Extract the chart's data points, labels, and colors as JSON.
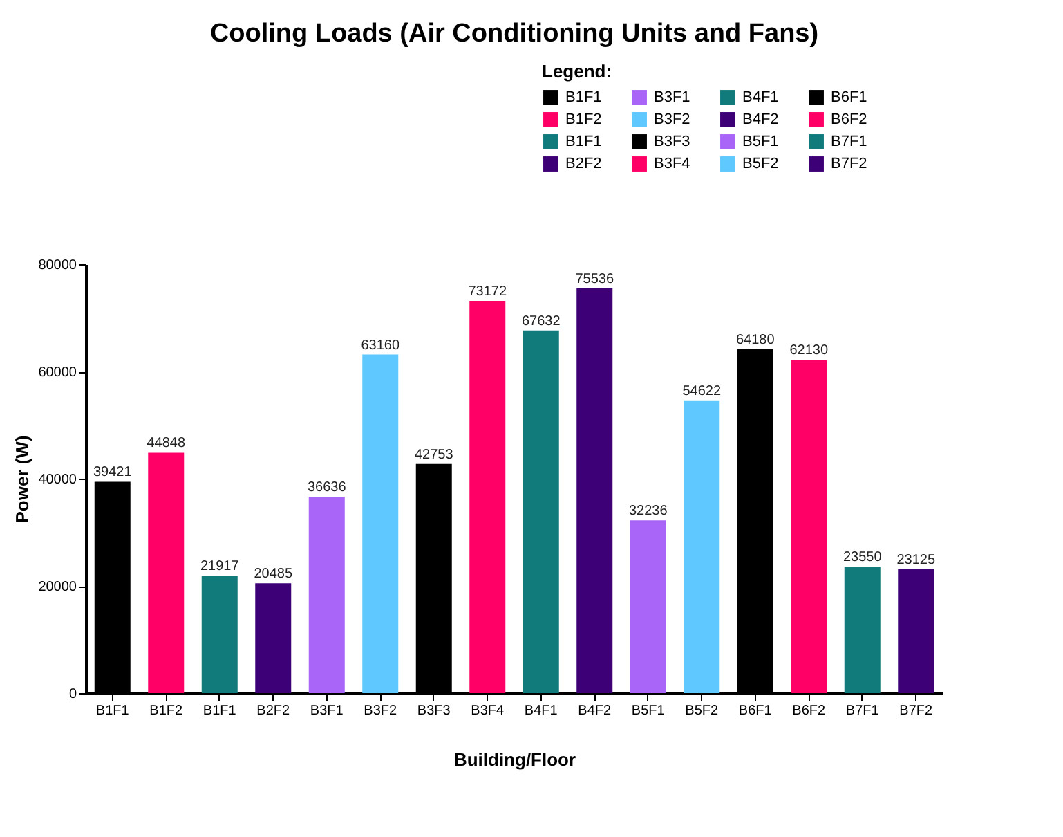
{
  "chart_data": {
    "type": "bar",
    "title": "Cooling Loads (Air Conditioning Units and Fans)",
    "xlabel": "Building/Floor",
    "ylabel": "Power (W)",
    "legend_title": "Legend:",
    "categories": [
      "B1F1",
      "B1F2",
      "B1F1",
      "B2F2",
      "B3F1",
      "B3F2",
      "B3F3",
      "B3F4",
      "B4F1",
      "B4F2",
      "B5F1",
      "B5F2",
      "B6F1",
      "B6F2",
      "B7F1",
      "B7F2"
    ],
    "series": [
      {
        "name": "B1F1",
        "color": "#000000",
        "values": [
          39421,
          null,
          null,
          null,
          null,
          null,
          null,
          null,
          null,
          null,
          null,
          null,
          null,
          null,
          null,
          null
        ]
      },
      {
        "name": "B1F2",
        "color": "#ff0066",
        "values": [
          null,
          44848,
          null,
          null,
          null,
          null,
          null,
          null,
          null,
          null,
          null,
          null,
          null,
          null,
          null,
          null
        ]
      },
      {
        "name": "B1F1",
        "color": "#117a7a",
        "values": [
          null,
          null,
          21917,
          null,
          null,
          null,
          null,
          null,
          null,
          null,
          null,
          null,
          null,
          null,
          null,
          null
        ]
      },
      {
        "name": "B2F2",
        "color": "#3d0077",
        "values": [
          null,
          null,
          null,
          20485,
          null,
          null,
          null,
          null,
          null,
          null,
          null,
          null,
          null,
          null,
          null,
          null
        ]
      },
      {
        "name": "B3F1",
        "color": "#a865f7",
        "values": [
          null,
          null,
          null,
          null,
          36636,
          null,
          null,
          null,
          null,
          null,
          null,
          null,
          null,
          null,
          null,
          null
        ]
      },
      {
        "name": "B3F2",
        "color": "#5fc8ff",
        "values": [
          null,
          null,
          null,
          null,
          null,
          63160,
          null,
          null,
          null,
          null,
          null,
          null,
          null,
          null,
          null,
          null
        ]
      },
      {
        "name": "B3F3",
        "color": "#000000",
        "values": [
          null,
          null,
          null,
          null,
          null,
          null,
          42753,
          null,
          null,
          null,
          null,
          null,
          null,
          null,
          null,
          null
        ]
      },
      {
        "name": "B3F4",
        "color": "#ff0066",
        "values": [
          null,
          null,
          null,
          null,
          null,
          null,
          null,
          73172,
          null,
          null,
          null,
          null,
          null,
          null,
          null,
          null
        ]
      },
      {
        "name": "B4F1",
        "color": "#117a7a",
        "values": [
          null,
          null,
          null,
          null,
          null,
          null,
          null,
          null,
          67632,
          null,
          null,
          null,
          null,
          null,
          null,
          null
        ]
      },
      {
        "name": "B4F2",
        "color": "#3d0077",
        "values": [
          null,
          null,
          null,
          null,
          null,
          null,
          null,
          null,
          null,
          75536,
          null,
          null,
          null,
          null,
          null,
          null
        ]
      },
      {
        "name": "B5F1",
        "color": "#a865f7",
        "values": [
          null,
          null,
          null,
          null,
          null,
          null,
          null,
          null,
          null,
          null,
          32236,
          null,
          null,
          null,
          null,
          null
        ]
      },
      {
        "name": "B5F2",
        "color": "#5fc8ff",
        "values": [
          null,
          null,
          null,
          null,
          null,
          null,
          null,
          null,
          null,
          null,
          null,
          54622,
          null,
          null,
          null,
          null
        ]
      },
      {
        "name": "B6F1",
        "color": "#000000",
        "values": [
          null,
          null,
          null,
          null,
          null,
          null,
          null,
          null,
          null,
          null,
          null,
          null,
          64180,
          null,
          null,
          null
        ]
      },
      {
        "name": "B6F2",
        "color": "#ff0066",
        "values": [
          null,
          null,
          null,
          null,
          null,
          null,
          null,
          null,
          null,
          null,
          null,
          null,
          null,
          62130,
          null,
          null
        ]
      },
      {
        "name": "B7F1",
        "color": "#117a7a",
        "values": [
          null,
          null,
          null,
          null,
          null,
          null,
          null,
          null,
          null,
          null,
          null,
          null,
          null,
          null,
          23550,
          null
        ]
      },
      {
        "name": "B7F2",
        "color": "#3d0077",
        "values": [
          null,
          null,
          null,
          null,
          null,
          null,
          null,
          null,
          null,
          null,
          null,
          null,
          null,
          null,
          null,
          23125
        ]
      }
    ],
    "ylim": [
      0,
      80000
    ],
    "yticks": [
      0,
      20000,
      40000,
      60000,
      80000
    ],
    "grid": false,
    "legend": "top right",
    "data_labels": true
  }
}
